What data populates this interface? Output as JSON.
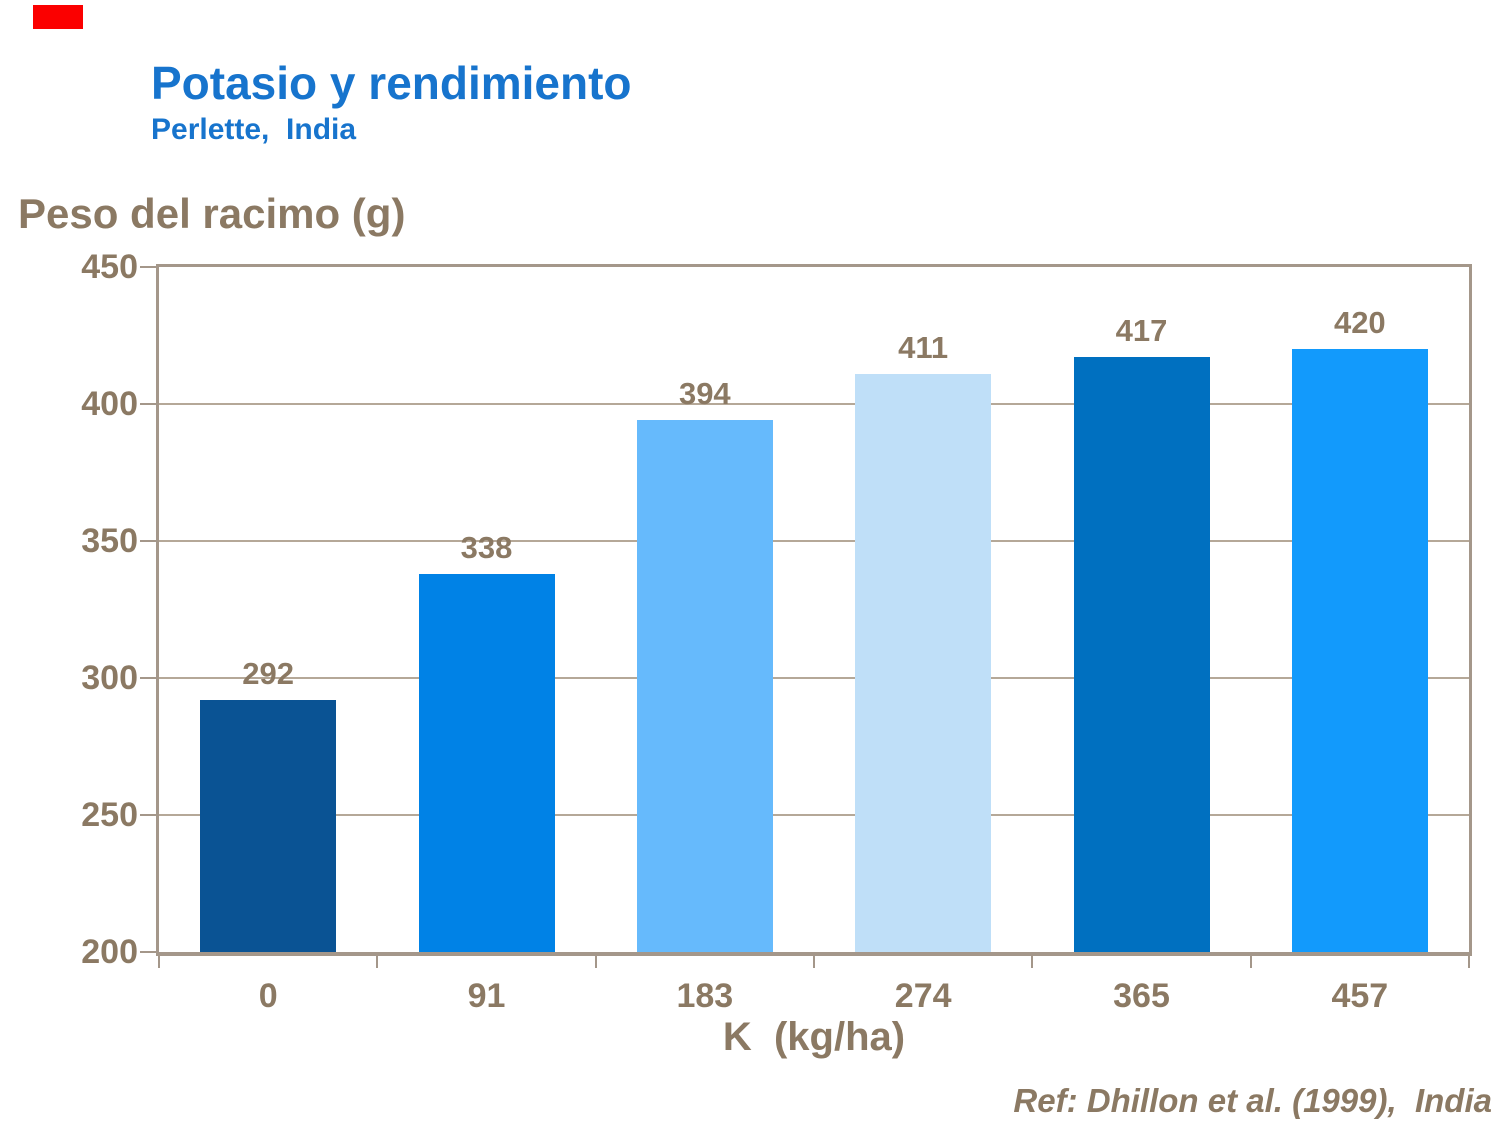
{
  "slide": {
    "background": "#FFFFFF",
    "accent_bar_color": "#FB0000"
  },
  "header": {
    "title": "Potasio y rendimiento",
    "subtitle": "Perlette,  India"
  },
  "footer": {
    "reference": "Ref: Dhillon et al. (1999),  India"
  },
  "chart_data": {
    "type": "bar",
    "title": "Potasio y rendimiento",
    "subtitle": "Perlette, India",
    "ylabel": "Peso del racimo (g)",
    "xlabel": "K  (kg/ha)",
    "categories": [
      "0",
      "91",
      "183",
      "274",
      "365",
      "457"
    ],
    "values": [
      292,
      338,
      394,
      411,
      417,
      420
    ],
    "bar_colors": [
      "#0A5394",
      "#0082E6",
      "#66BAFC",
      "#BFDFF8",
      "#0070C0",
      "#129AFC"
    ],
    "ylim": [
      200,
      450
    ],
    "yticks": [
      200,
      250,
      300,
      350,
      400,
      450
    ],
    "grid": "horizontal",
    "legend_position": "none",
    "value_labels_shown": true,
    "reference": "Ref: Dhillon et al. (1999), India"
  },
  "colors": {
    "title_blue": "#1774CD",
    "label_brown": "#8B7963",
    "gridline": "#B5A898",
    "plot_border": "#A4978A"
  }
}
